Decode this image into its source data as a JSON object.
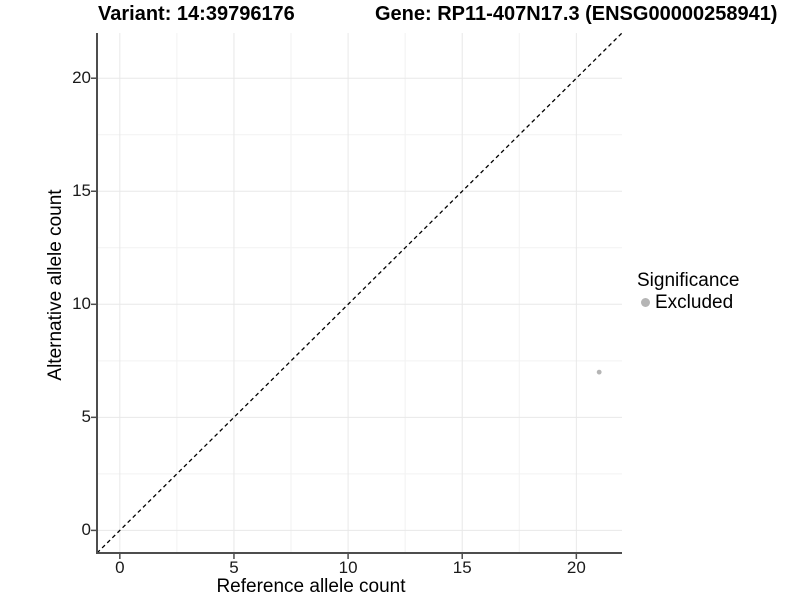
{
  "header": {
    "title_left": "Variant: 14:39796176",
    "title_right": "Gene: RP11-407N17.3 (ENSG00000258941)"
  },
  "chart_data": {
    "type": "scatter",
    "title_left": "Variant: 14:39796176",
    "title_right": "Gene: RP11-407N17.3 (ENSG00000258941)",
    "xlabel": "Reference allele count",
    "ylabel": "Alternative allele count",
    "xlim": [
      -1,
      22
    ],
    "ylim": [
      -1,
      22
    ],
    "x_ticks": [
      0,
      5,
      10,
      15,
      20
    ],
    "y_ticks": [
      0,
      5,
      10,
      15,
      20
    ],
    "minor_tick_step": 2.5,
    "grid": "major-and-minor",
    "reference_line": {
      "type": "identity",
      "from": [
        -1,
        -1
      ],
      "to": [
        22,
        22
      ],
      "style": "dashed",
      "color": "#000000"
    },
    "series": [
      {
        "name": "Excluded",
        "color": "#b5b5b5",
        "point_radius": 2.4,
        "points": [
          {
            "x": 21,
            "y": 7
          }
        ]
      }
    ],
    "legend": {
      "title": "Significance",
      "position": "right",
      "entries": [
        {
          "label": "Excluded",
          "color": "#b5b5b5"
        }
      ]
    },
    "colors": {
      "background": "#ffffff",
      "grid_major": "#e8e8e8",
      "grid_minor": "#f2f2f2",
      "axis_line": "#4d4d4d",
      "tick_mark": "#4d4d4d",
      "text": "#000000"
    }
  }
}
